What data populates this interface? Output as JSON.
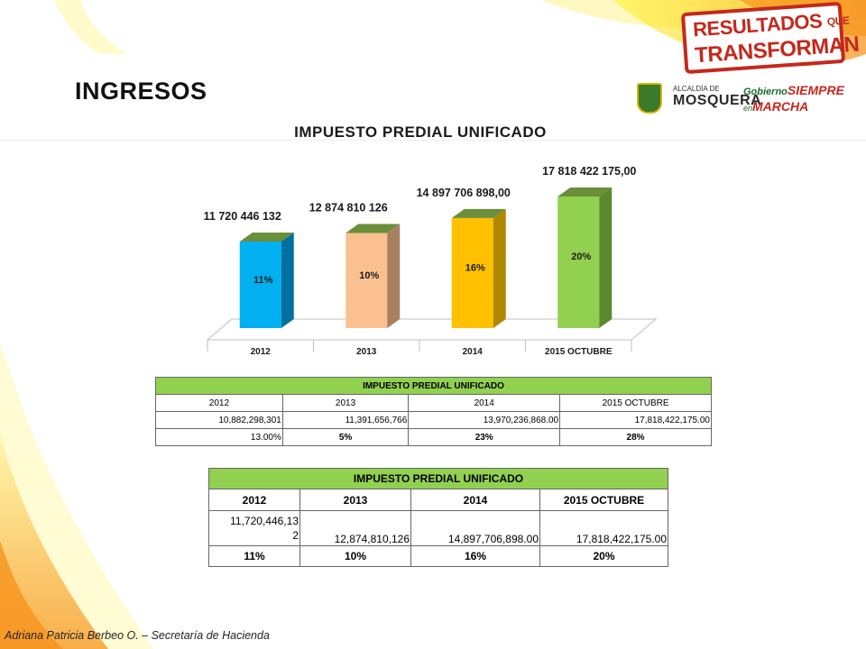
{
  "slide": {
    "title": "INGRESOS",
    "footer": "Adriana Patricia Berbeo O. – Secretaría de Hacienda"
  },
  "branding": {
    "badge_line1": "RESULTADOS",
    "badge_que": "QUE",
    "badge_line2": "TRANSFORMAN",
    "logo_alcaldia_small": "ALCALDÍA DE",
    "logo_alcaldia_big": "MOSQUERA",
    "logo_gobierno_a": "Gobierno",
    "logo_gobierno_b": "SIEMPRE",
    "logo_gobierno_c": "en",
    "logo_gobierno_d": "MARCHA",
    "colors": {
      "badge_red": "#c5281c",
      "green": "#92d050",
      "yellow": "#ffc000"
    }
  },
  "chart_data": {
    "type": "bar",
    "title": "IMPUESTO PREDIAL UNIFICADO",
    "categories": [
      "2012",
      "2013",
      "2014",
      "2015 OCTUBRE"
    ],
    "values": [
      11720446132,
      12874810126,
      14897706898,
      17818422175
    ],
    "value_labels": [
      "11 720 446 132",
      "12 874 810 126",
      "14 897 706 898,00",
      "17 818 422 175,00"
    ],
    "percent_labels": [
      "11%",
      "10%",
      "16%",
      "20%"
    ],
    "bar_colors": [
      "#00b0f0",
      "#fac090",
      "#ffc000",
      "#92d050"
    ],
    "side_colors": [
      "#0070a0",
      "#a88060",
      "#b08800",
      "#5a8a30"
    ],
    "top_color": "#6b8e3a",
    "ylim": [
      0,
      18000000000
    ],
    "style": "3d-column"
  },
  "table1": {
    "title": "IMPUESTO PREDIAL UNIFICADO",
    "headers": [
      "2012",
      "2013",
      "2014",
      "2015 OCTUBRE"
    ],
    "values": [
      "10,882,298,301",
      "11,391,656,766",
      "13,970,236,868.00",
      "17,818,422,175.00"
    ],
    "percents": [
      "13.00%",
      "5%",
      "23%",
      "28%"
    ]
  },
  "table2": {
    "title": "IMPUESTO PREDIAL UNIFICADO",
    "headers": [
      "2012",
      "2013",
      "2014",
      "2015 OCTUBRE"
    ],
    "values_first_line": "11,720,446,13",
    "values_first_line_end": "2",
    "values": [
      "12,874,810,126",
      "14,897,706,898.00",
      "17,818,422,175.00"
    ],
    "percents": [
      "11%",
      "10%",
      "16%",
      "20%"
    ]
  }
}
